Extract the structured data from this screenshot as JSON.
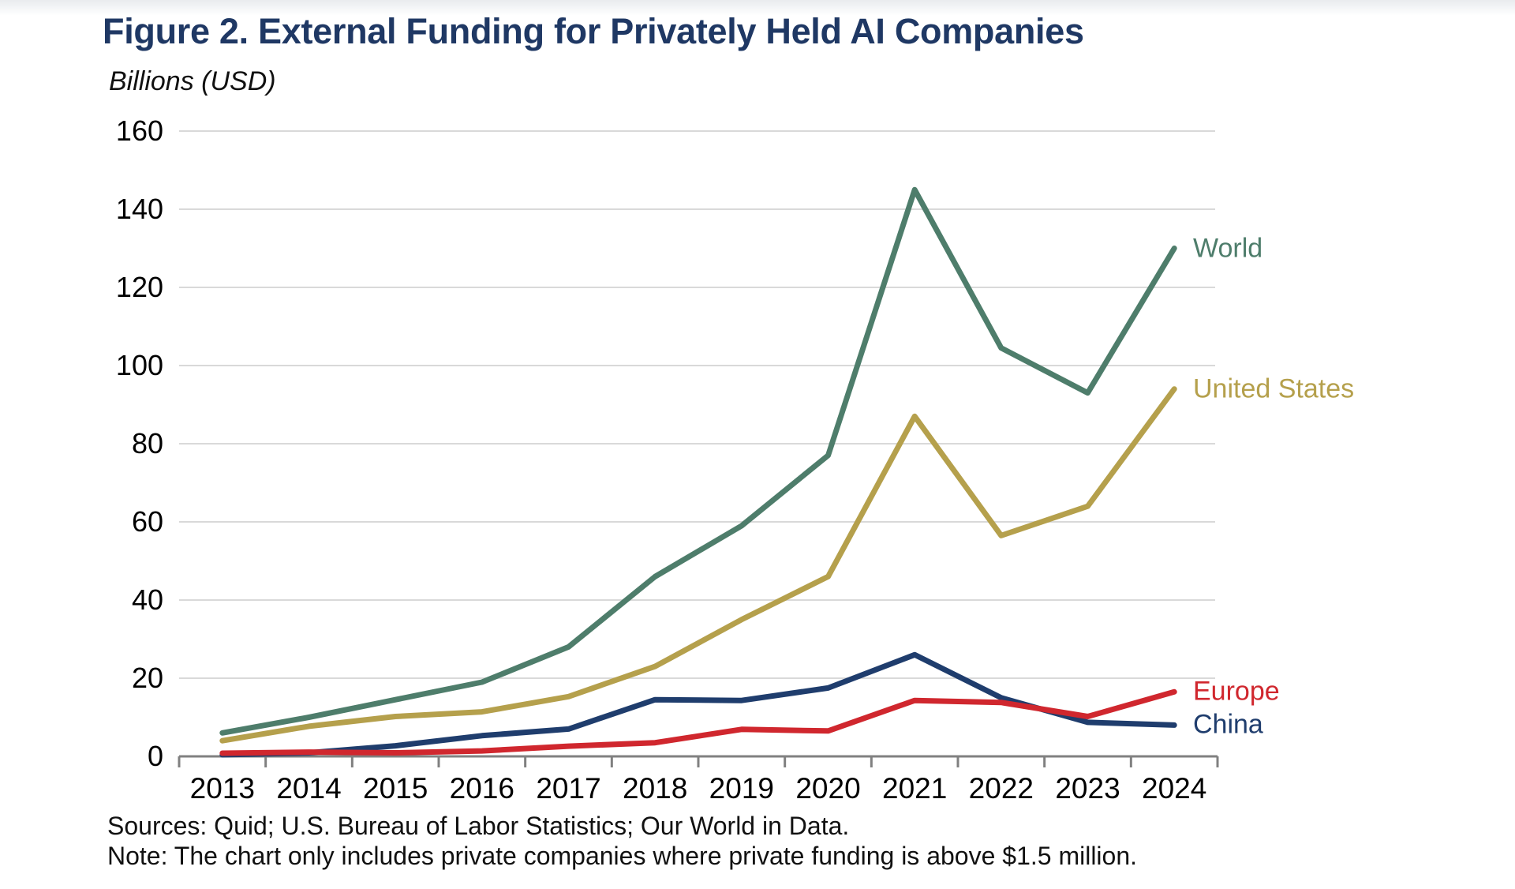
{
  "page": {
    "title": "Figure 2. External Funding for Privately Held AI Companies",
    "unit_label": "Billions (USD)",
    "sources": "Sources: Quid; U.S. Bureau of Labor Statistics; Our World in Data.",
    "note": "Note: The chart only includes private companies where private funding is above $1.5 million."
  },
  "colors": {
    "title_navy": "#1F3864",
    "gridline": "#D9D9D9",
    "axis": "#808080",
    "tick_label": "#000000",
    "world_green": "#4E7D6B",
    "us_gold": "#B5A04C",
    "china_navy": "#1F3D6D",
    "europe_red": "#D0272E"
  },
  "chart_data": {
    "type": "line",
    "title": "Figure 2. External Funding for Privately Held AI Companies",
    "xlabel": "",
    "ylabel": "Billions (USD)",
    "categories": [
      "2013",
      "2014",
      "2015",
      "2016",
      "2017",
      "2018",
      "2019",
      "2020",
      "2021",
      "2022",
      "2023",
      "2024"
    ],
    "series": [
      {
        "name": "World",
        "color": "#4E7D6B",
        "values": [
          6,
          10,
          14.5,
          19,
          28,
          46,
          59,
          77,
          145,
          104.5,
          93,
          130
        ]
      },
      {
        "name": "United States",
        "color": "#B5A04C",
        "values": [
          4,
          7.7,
          10.2,
          11.4,
          15.3,
          23,
          35,
          46,
          87,
          56.5,
          64,
          94
        ]
      },
      {
        "name": "China",
        "color": "#1F3D6D",
        "values": [
          0.4,
          0.9,
          2.7,
          5.3,
          7,
          14.5,
          14.3,
          17.5,
          26,
          15,
          8.7,
          8
        ]
      },
      {
        "name": "Europe",
        "color": "#D0272E",
        "values": [
          0.8,
          1.1,
          0.9,
          1.4,
          2.6,
          3.5,
          6.9,
          6.5,
          14.3,
          13.8,
          10.2,
          16.5
        ]
      }
    ],
    "ylim": [
      0,
      160
    ],
    "yticks": [
      0,
      20,
      40,
      60,
      80,
      100,
      120,
      140,
      160
    ],
    "grid": true,
    "grid_axis": "y",
    "legend_position": "right-end-labels"
  }
}
